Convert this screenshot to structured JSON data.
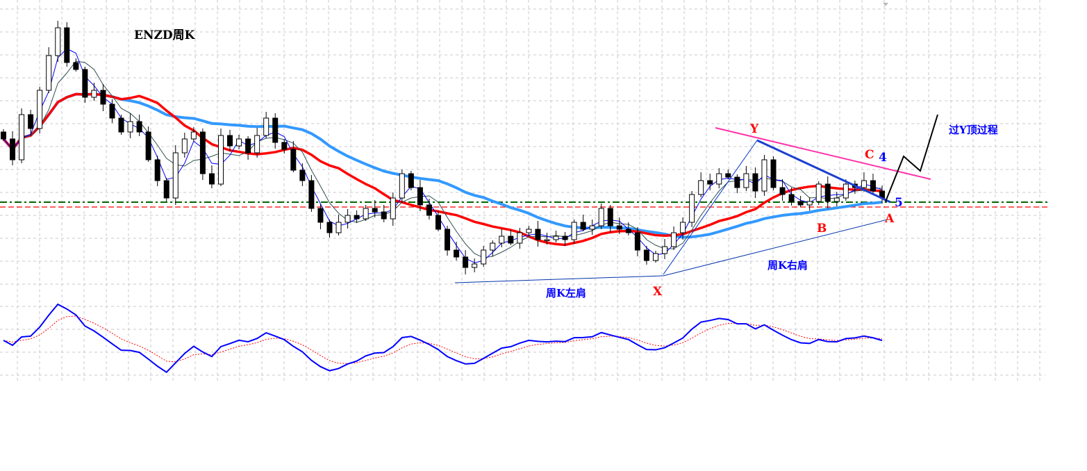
{
  "chart_data": {
    "type": "candlestick",
    "title": "ENZD周K",
    "grid": true,
    "colors": {
      "up_fill": "#ffffff",
      "down_fill": "#000000",
      "ma_short": "#0000ff",
      "ma_mid": "#2f4f4f",
      "ma_red": "#ff0000",
      "ma_blue": "#3399ff",
      "support_green": "#006600",
      "support_red": "#ff0000",
      "trend_pink": "#ff33aa",
      "annotation_red": "#ff0000",
      "annotation_blue": "#0000ff",
      "macd": "#0000ff",
      "signal": "#ff0000"
    },
    "closes": [
      220,
      190,
      255,
      235,
      290,
      340,
      380,
      330,
      320,
      280,
      290,
      270,
      250,
      230,
      245,
      230,
      190,
      160,
      135,
      200,
      220,
      230,
      170,
      155,
      225,
      210,
      220,
      200,
      225,
      250,
      215,
      205,
      175,
      160,
      120,
      100,
      85,
      100,
      110,
      105,
      120,
      115,
      105,
      135,
      170,
      150,
      125,
      110,
      90,
      60,
      50,
      35,
      40,
      60,
      70,
      80,
      70,
      85,
      90,
      75,
      75,
      80,
      75,
      100,
      90,
      95,
      120,
      95,
      90,
      85,
      60,
      45,
      55,
      65,
      85,
      100,
      140,
      160,
      155,
      170,
      165,
      150,
      170,
      145,
      190,
      150,
      140,
      130,
      125,
      130,
      155,
      130,
      135,
      155,
      150,
      160,
      145,
      135
    ],
    "levels": {
      "green_dashdot": 129,
      "red_dashed": 122
    }
  },
  "annotations": {
    "title": "ENZD周K",
    "Y": "Y",
    "C": "C",
    "four": "4",
    "five": "5",
    "A": "A",
    "B": "B",
    "X": "X",
    "right_shoulder": "周K右肩",
    "left_shoulder": "周K左肩",
    "process": "过Y顶过程"
  }
}
